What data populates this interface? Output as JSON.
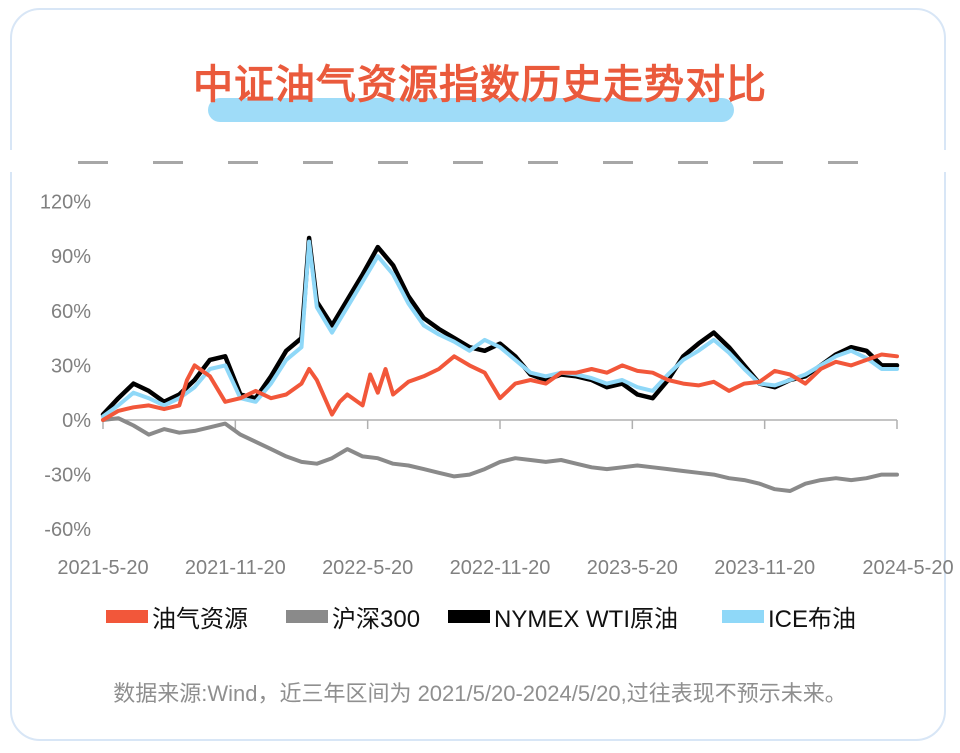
{
  "title": "中证油气资源指数历史走势对比",
  "source_note": "数据来源:Wind，近三年区间为 2021/5/20-2024/5/20,过往表现不预示未来。",
  "colors": {
    "title": "#ea5a3c",
    "highlight": "#9fdcf8",
    "oil_gas": "#f2573a",
    "csi300": "#8a8a8a",
    "wti": "#000000",
    "brent": "#8fd8f8"
  },
  "chart_data": {
    "type": "line",
    "x_ticks": [
      "2021-5-20",
      "2021-11-20",
      "2022-5-20",
      "2022-11-20",
      "2023-5-20",
      "2023-11-20",
      "2024-5-20"
    ],
    "y_ticks": [
      "120%",
      "90%",
      "60%",
      "30%",
      "0%",
      "-30%",
      "-60%"
    ],
    "y_tick_values": [
      120,
      90,
      60,
      30,
      0,
      -30,
      -60
    ],
    "ylim": [
      -60,
      120
    ],
    "grid": false,
    "legend_position": "bottom",
    "series": [
      {
        "name": "油气资源",
        "color": "#f2573a",
        "points": [
          [
            0,
            0
          ],
          [
            1,
            5
          ],
          [
            2,
            7
          ],
          [
            3,
            8
          ],
          [
            4,
            6
          ],
          [
            5,
            8
          ],
          [
            5.5,
            22
          ],
          [
            6,
            30
          ],
          [
            7,
            24
          ],
          [
            8,
            10
          ],
          [
            9,
            12
          ],
          [
            10,
            16
          ],
          [
            11,
            12
          ],
          [
            12,
            14
          ],
          [
            13,
            20
          ],
          [
            13.5,
            28
          ],
          [
            14,
            22
          ],
          [
            15,
            3
          ],
          [
            15.5,
            10
          ],
          [
            16,
            14
          ],
          [
            17,
            8
          ],
          [
            17.5,
            25
          ],
          [
            18,
            15
          ],
          [
            18.5,
            28
          ],
          [
            19,
            14
          ],
          [
            20,
            21
          ],
          [
            21,
            24
          ],
          [
            22,
            28
          ],
          [
            23,
            35
          ],
          [
            24,
            30
          ],
          [
            25,
            26
          ],
          [
            26,
            12
          ],
          [
            27,
            20
          ],
          [
            28,
            22
          ],
          [
            29,
            20
          ],
          [
            30,
            26
          ],
          [
            31,
            26
          ],
          [
            32,
            28
          ],
          [
            33,
            26
          ],
          [
            34,
            30
          ],
          [
            35,
            27
          ],
          [
            36,
            26
          ],
          [
            37,
            22
          ],
          [
            38,
            20
          ],
          [
            39,
            19
          ],
          [
            40,
            21
          ],
          [
            41,
            16
          ],
          [
            42,
            20
          ],
          [
            43,
            21
          ],
          [
            44,
            27
          ],
          [
            45,
            25
          ],
          [
            46,
            20
          ],
          [
            47,
            28
          ],
          [
            48,
            32
          ],
          [
            49,
            30
          ],
          [
            50,
            33
          ],
          [
            51,
            36
          ],
          [
            52,
            35
          ]
        ]
      },
      {
        "name": "沪深300",
        "color": "#8a8a8a",
        "points": [
          [
            0,
            0
          ],
          [
            1,
            1
          ],
          [
            2,
            -3
          ],
          [
            3,
            -8
          ],
          [
            4,
            -5
          ],
          [
            5,
            -7
          ],
          [
            6,
            -6
          ],
          [
            7,
            -4
          ],
          [
            8,
            -2
          ],
          [
            9,
            -8
          ],
          [
            10,
            -12
          ],
          [
            11,
            -16
          ],
          [
            12,
            -20
          ],
          [
            13,
            -23
          ],
          [
            14,
            -24
          ],
          [
            15,
            -21
          ],
          [
            16,
            -16
          ],
          [
            17,
            -20
          ],
          [
            18,
            -21
          ],
          [
            19,
            -24
          ],
          [
            20,
            -25
          ],
          [
            21,
            -27
          ],
          [
            22,
            -29
          ],
          [
            23,
            -31
          ],
          [
            24,
            -30
          ],
          [
            25,
            -27
          ],
          [
            26,
            -23
          ],
          [
            27,
            -21
          ],
          [
            28,
            -22
          ],
          [
            29,
            -23
          ],
          [
            30,
            -22
          ],
          [
            31,
            -24
          ],
          [
            32,
            -26
          ],
          [
            33,
            -27
          ],
          [
            34,
            -26
          ],
          [
            35,
            -25
          ],
          [
            36,
            -26
          ],
          [
            37,
            -27
          ],
          [
            38,
            -28
          ],
          [
            39,
            -29
          ],
          [
            40,
            -30
          ],
          [
            41,
            -32
          ],
          [
            42,
            -33
          ],
          [
            43,
            -35
          ],
          [
            44,
            -38
          ],
          [
            45,
            -39
          ],
          [
            46,
            -35
          ],
          [
            47,
            -33
          ],
          [
            48,
            -32
          ],
          [
            49,
            -33
          ],
          [
            50,
            -32
          ],
          [
            51,
            -30
          ],
          [
            52,
            -30
          ]
        ]
      },
      {
        "name": "NYMEX WTI原油",
        "color": "#000000",
        "points": [
          [
            0,
            3
          ],
          [
            1,
            12
          ],
          [
            2,
            20
          ],
          [
            3,
            16
          ],
          [
            4,
            10
          ],
          [
            5,
            14
          ],
          [
            6,
            22
          ],
          [
            7,
            33
          ],
          [
            8,
            35
          ],
          [
            9,
            14
          ],
          [
            10,
            12
          ],
          [
            11,
            24
          ],
          [
            12,
            38
          ],
          [
            13,
            45
          ],
          [
            13.5,
            100
          ],
          [
            14,
            65
          ],
          [
            15,
            52
          ],
          [
            16,
            66
          ],
          [
            17,
            80
          ],
          [
            18,
            95
          ],
          [
            19,
            85
          ],
          [
            20,
            68
          ],
          [
            21,
            56
          ],
          [
            22,
            50
          ],
          [
            23,
            45
          ],
          [
            24,
            40
          ],
          [
            25,
            38
          ],
          [
            26,
            42
          ],
          [
            27,
            35
          ],
          [
            28,
            25
          ],
          [
            29,
            22
          ],
          [
            30,
            25
          ],
          [
            31,
            24
          ],
          [
            32,
            22
          ],
          [
            33,
            18
          ],
          [
            34,
            20
          ],
          [
            35,
            14
          ],
          [
            36,
            12
          ],
          [
            37,
            22
          ],
          [
            38,
            35
          ],
          [
            39,
            42
          ],
          [
            40,
            48
          ],
          [
            41,
            40
          ],
          [
            42,
            30
          ],
          [
            43,
            20
          ],
          [
            44,
            18
          ],
          [
            45,
            22
          ],
          [
            46,
            24
          ],
          [
            47,
            30
          ],
          [
            48,
            36
          ],
          [
            49,
            40
          ],
          [
            50,
            38
          ],
          [
            51,
            30
          ],
          [
            52,
            30
          ]
        ]
      },
      {
        "name": "ICE布油",
        "color": "#8fd8f8",
        "points": [
          [
            0,
            2
          ],
          [
            1,
            8
          ],
          [
            2,
            15
          ],
          [
            3,
            12
          ],
          [
            4,
            8
          ],
          [
            5,
            12
          ],
          [
            6,
            18
          ],
          [
            7,
            28
          ],
          [
            8,
            30
          ],
          [
            9,
            12
          ],
          [
            10,
            10
          ],
          [
            11,
            20
          ],
          [
            12,
            33
          ],
          [
            13,
            40
          ],
          [
            13.5,
            98
          ],
          [
            14,
            62
          ],
          [
            15,
            48
          ],
          [
            16,
            62
          ],
          [
            17,
            76
          ],
          [
            18,
            90
          ],
          [
            19,
            80
          ],
          [
            20,
            64
          ],
          [
            21,
            52
          ],
          [
            22,
            47
          ],
          [
            23,
            43
          ],
          [
            24,
            38
          ],
          [
            25,
            44
          ],
          [
            26,
            40
          ],
          [
            27,
            33
          ],
          [
            28,
            26
          ],
          [
            29,
            24
          ],
          [
            30,
            26
          ],
          [
            31,
            25
          ],
          [
            32,
            23
          ],
          [
            33,
            20
          ],
          [
            34,
            22
          ],
          [
            35,
            18
          ],
          [
            36,
            16
          ],
          [
            37,
            25
          ],
          [
            38,
            33
          ],
          [
            39,
            38
          ],
          [
            40,
            44
          ],
          [
            41,
            37
          ],
          [
            42,
            28
          ],
          [
            43,
            20
          ],
          [
            44,
            19
          ],
          [
            45,
            22
          ],
          [
            46,
            25
          ],
          [
            47,
            30
          ],
          [
            48,
            35
          ],
          [
            49,
            38
          ],
          [
            50,
            34
          ],
          [
            51,
            28
          ],
          [
            52,
            28
          ]
        ]
      }
    ]
  }
}
